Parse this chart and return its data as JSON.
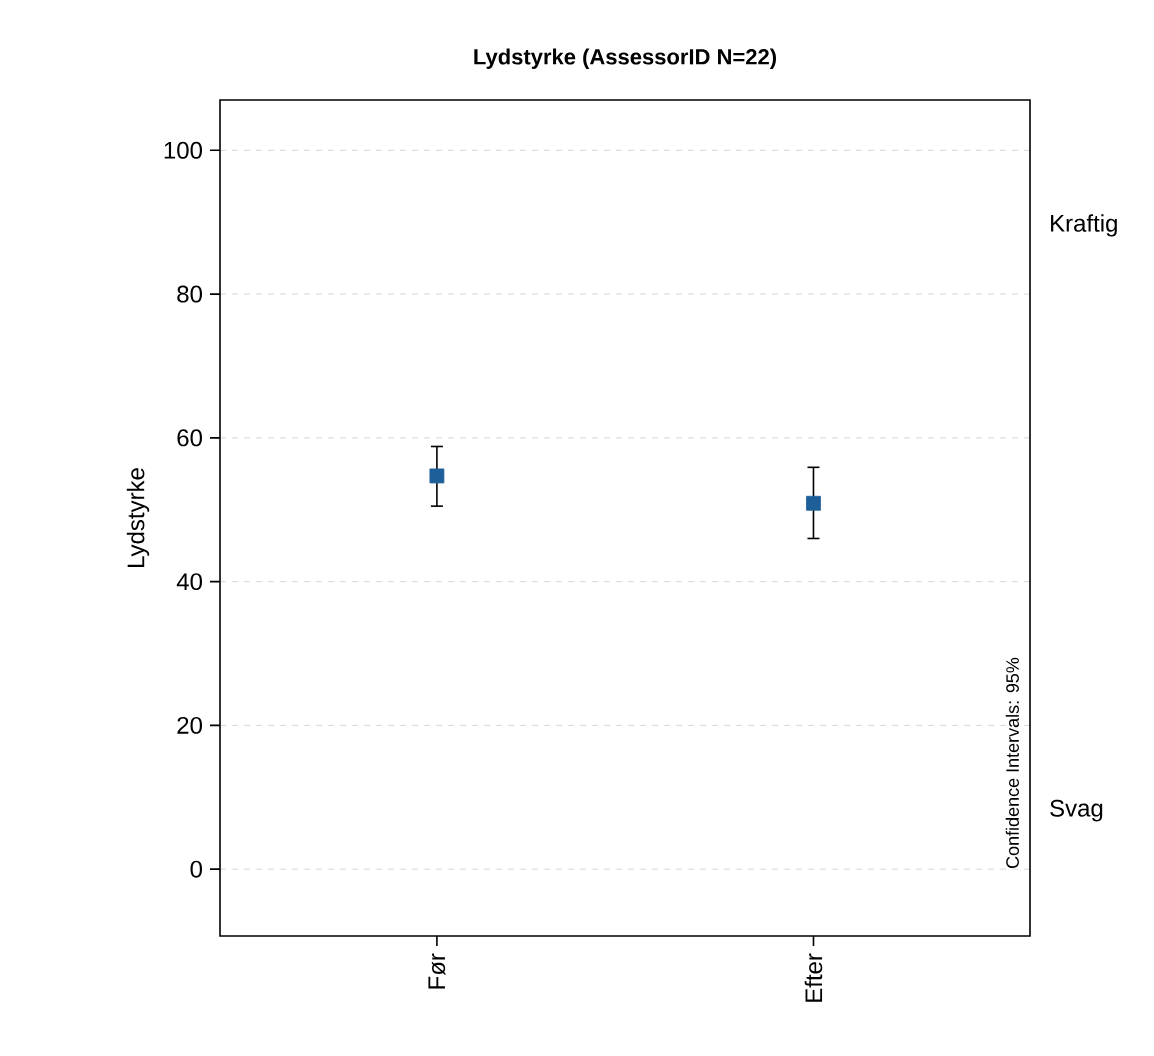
{
  "chart_data": {
    "type": "scatter",
    "title": "Lydstyrke (AssessorID N=22)",
    "ylabel": "Lydstyrke",
    "categories": [
      "Før",
      "Efter"
    ],
    "series": [
      {
        "color": "#1f5f99",
        "values": [
          54.7,
          50.9
        ],
        "errors": [
          [
            50.5,
            58.8
          ],
          [
            46.0,
            55.9
          ]
        ]
      }
    ],
    "ylim": [
      -9.3,
      107
    ],
    "yticks": [
      0,
      20,
      40,
      60,
      80,
      100
    ],
    "annotations": [
      "Confidence Intervals: 95%",
      "Kraftig",
      "Svag"
    ],
    "grid": "y",
    "marker": "square"
  }
}
